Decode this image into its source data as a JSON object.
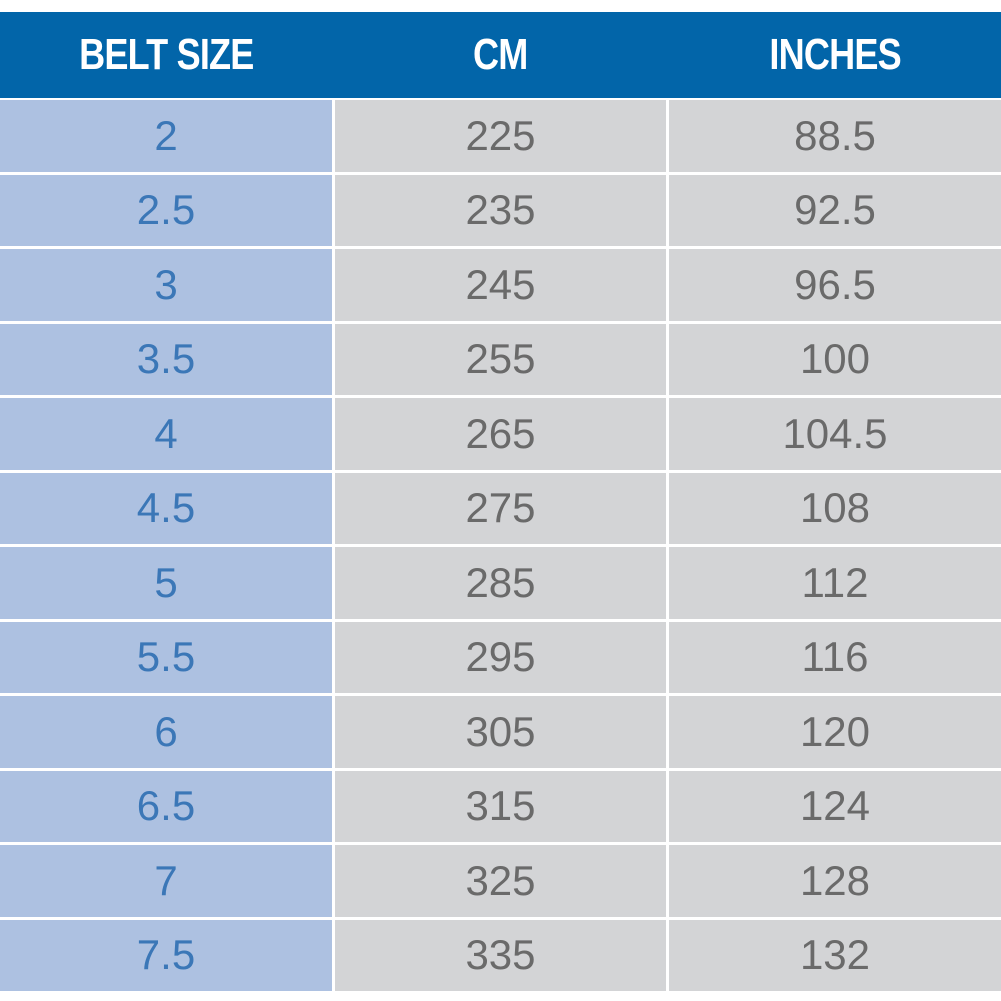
{
  "table": {
    "header": [
      "BELT SIZE",
      "CM",
      "INCHES"
    ],
    "rows": [
      [
        "2",
        "225",
        "88.5"
      ],
      [
        "2.5",
        "235",
        "92.5"
      ],
      [
        "3",
        "245",
        "96.5"
      ],
      [
        "3.5",
        "255",
        "100"
      ],
      [
        "4",
        "265",
        "104.5"
      ],
      [
        "4.5",
        "275",
        "108"
      ],
      [
        "5",
        "285",
        "112"
      ],
      [
        "5.5",
        "295",
        "116"
      ],
      [
        "6",
        "305",
        "120"
      ],
      [
        "6.5",
        "315",
        "124"
      ],
      [
        "7",
        "325",
        "128"
      ],
      [
        "7.5",
        "335",
        "132"
      ]
    ]
  }
}
